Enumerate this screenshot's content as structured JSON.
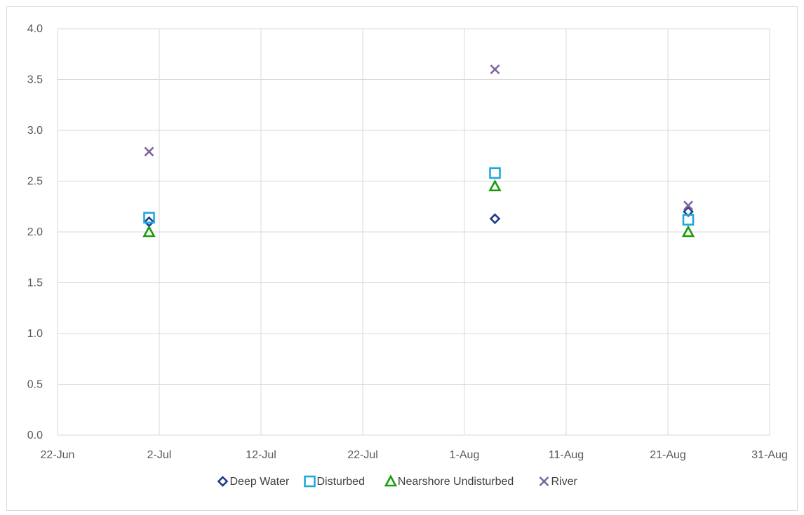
{
  "chart_data": {
    "type": "scatter",
    "title": "",
    "xlabel": "",
    "ylabel": "",
    "x_axis": {
      "type": "date",
      "min": "2022-06-22",
      "max": "2022-08-31",
      "tick_labels": [
        "22-Jun",
        "2-Jul",
        "12-Jul",
        "22-Jul",
        "1-Aug",
        "11-Aug",
        "21-Aug",
        "31-Aug"
      ],
      "tick_dates": [
        "2022-06-22",
        "2022-07-02",
        "2022-07-12",
        "2022-07-22",
        "2022-08-01",
        "2022-08-11",
        "2022-08-21",
        "2022-08-31"
      ]
    },
    "y_axis": {
      "min": 0,
      "max": 4,
      "step": 0.5,
      "tick_labels": [
        "0.0",
        "0.5",
        "1.0",
        "1.5",
        "2.0",
        "2.5",
        "3.0",
        "3.5",
        "4.0"
      ]
    },
    "grid": true,
    "legend_position": "bottom",
    "series": [
      {
        "name": "Deep Water",
        "marker": "diamond",
        "color": "#1f3c88",
        "points": [
          {
            "x": "2022-07-01",
            "y": 2.1
          },
          {
            "x": "2022-08-04",
            "y": 2.13
          },
          {
            "x": "2022-08-23",
            "y": 2.2
          }
        ]
      },
      {
        "name": "Disturbed",
        "marker": "square",
        "color": "#1fa8e0",
        "points": [
          {
            "x": "2022-07-01",
            "y": 2.14
          },
          {
            "x": "2022-08-04",
            "y": 2.58
          },
          {
            "x": "2022-08-23",
            "y": 2.12
          }
        ]
      },
      {
        "name": "Nearshore Undisturbed",
        "marker": "triangle",
        "color": "#1a9c0f",
        "points": [
          {
            "x": "2022-07-01",
            "y": 2.0
          },
          {
            "x": "2022-08-04",
            "y": 2.45
          },
          {
            "x": "2022-08-23",
            "y": 2.0
          }
        ]
      },
      {
        "name": "River",
        "marker": "x",
        "color": "#8064a2",
        "points": [
          {
            "x": "2022-07-01",
            "y": 2.79
          },
          {
            "x": "2022-08-04",
            "y": 3.6
          },
          {
            "x": "2022-08-23",
            "y": 2.26
          }
        ]
      }
    ]
  }
}
